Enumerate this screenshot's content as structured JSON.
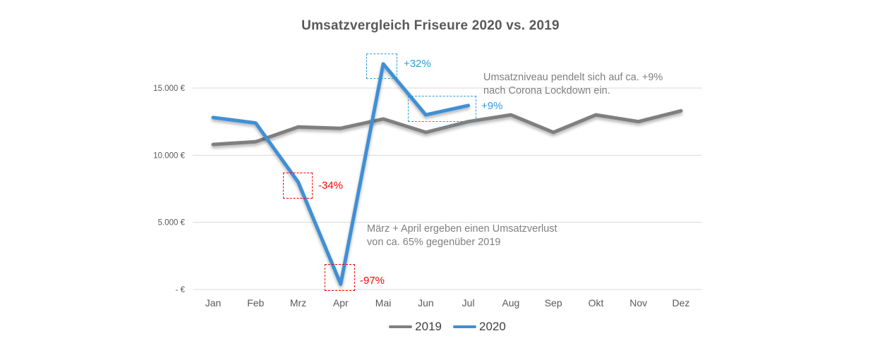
{
  "chart_data": {
    "type": "line",
    "title": "Umsatzvergleich Friseure 2020 vs. 2019",
    "categories": [
      "Jan",
      "Feb",
      "Mrz",
      "Apr",
      "Mai",
      "Jun",
      "Jul",
      "Aug",
      "Sep",
      "Okt",
      "Nov",
      "Dez"
    ],
    "series": [
      {
        "name": "2019",
        "color": "#7f7f7f",
        "values": [
          10800,
          11000,
          12100,
          12000,
          12700,
          11700,
          12500,
          13000,
          11700,
          13000,
          12500,
          13300
        ]
      },
      {
        "name": "2020",
        "color": "#3f8fd6",
        "values": [
          12800,
          12400,
          8000,
          400,
          16800,
          13000,
          13700,
          null,
          null,
          null,
          null,
          null
        ]
      }
    ],
    "xlabel": "",
    "ylabel": "",
    "ylim": [
      0,
      17500
    ],
    "yticks": [
      {
        "value": 0,
        "label": "-  €"
      },
      {
        "value": 5000,
        "label": "5.000 €"
      },
      {
        "value": 10000,
        "label": "10.000 €"
      },
      {
        "value": 15000,
        "label": "15.000 €"
      }
    ],
    "grid": true,
    "legend_position": "bottom-center"
  },
  "annotations": {
    "march_drop": {
      "label": "-34%"
    },
    "april_drop": {
      "label": "-97%"
    },
    "may_spike": {
      "label": "+32%"
    },
    "summer_level": {
      "label": "+9%"
    },
    "note_lockdown": {
      "line1": "Umsatzniveau pendelt sich auf ca. +9%",
      "line2": "nach Corona Lockdown ein."
    },
    "note_loss": {
      "line1": "März + April ergeben einen Umsatzverlust",
      "line2": "von ca. 65% gegenüber 2019"
    }
  },
  "colors": {
    "title": "#595959",
    "axis_labels": "#595959",
    "gridline": "#d9d9d9",
    "note_text": "#7f7f7f",
    "annotation_red": "#fe0000",
    "annotation_blue": "#2e9bd9",
    "series_2019": "#7f7f7f",
    "series_2020": "#3f8fd6"
  }
}
